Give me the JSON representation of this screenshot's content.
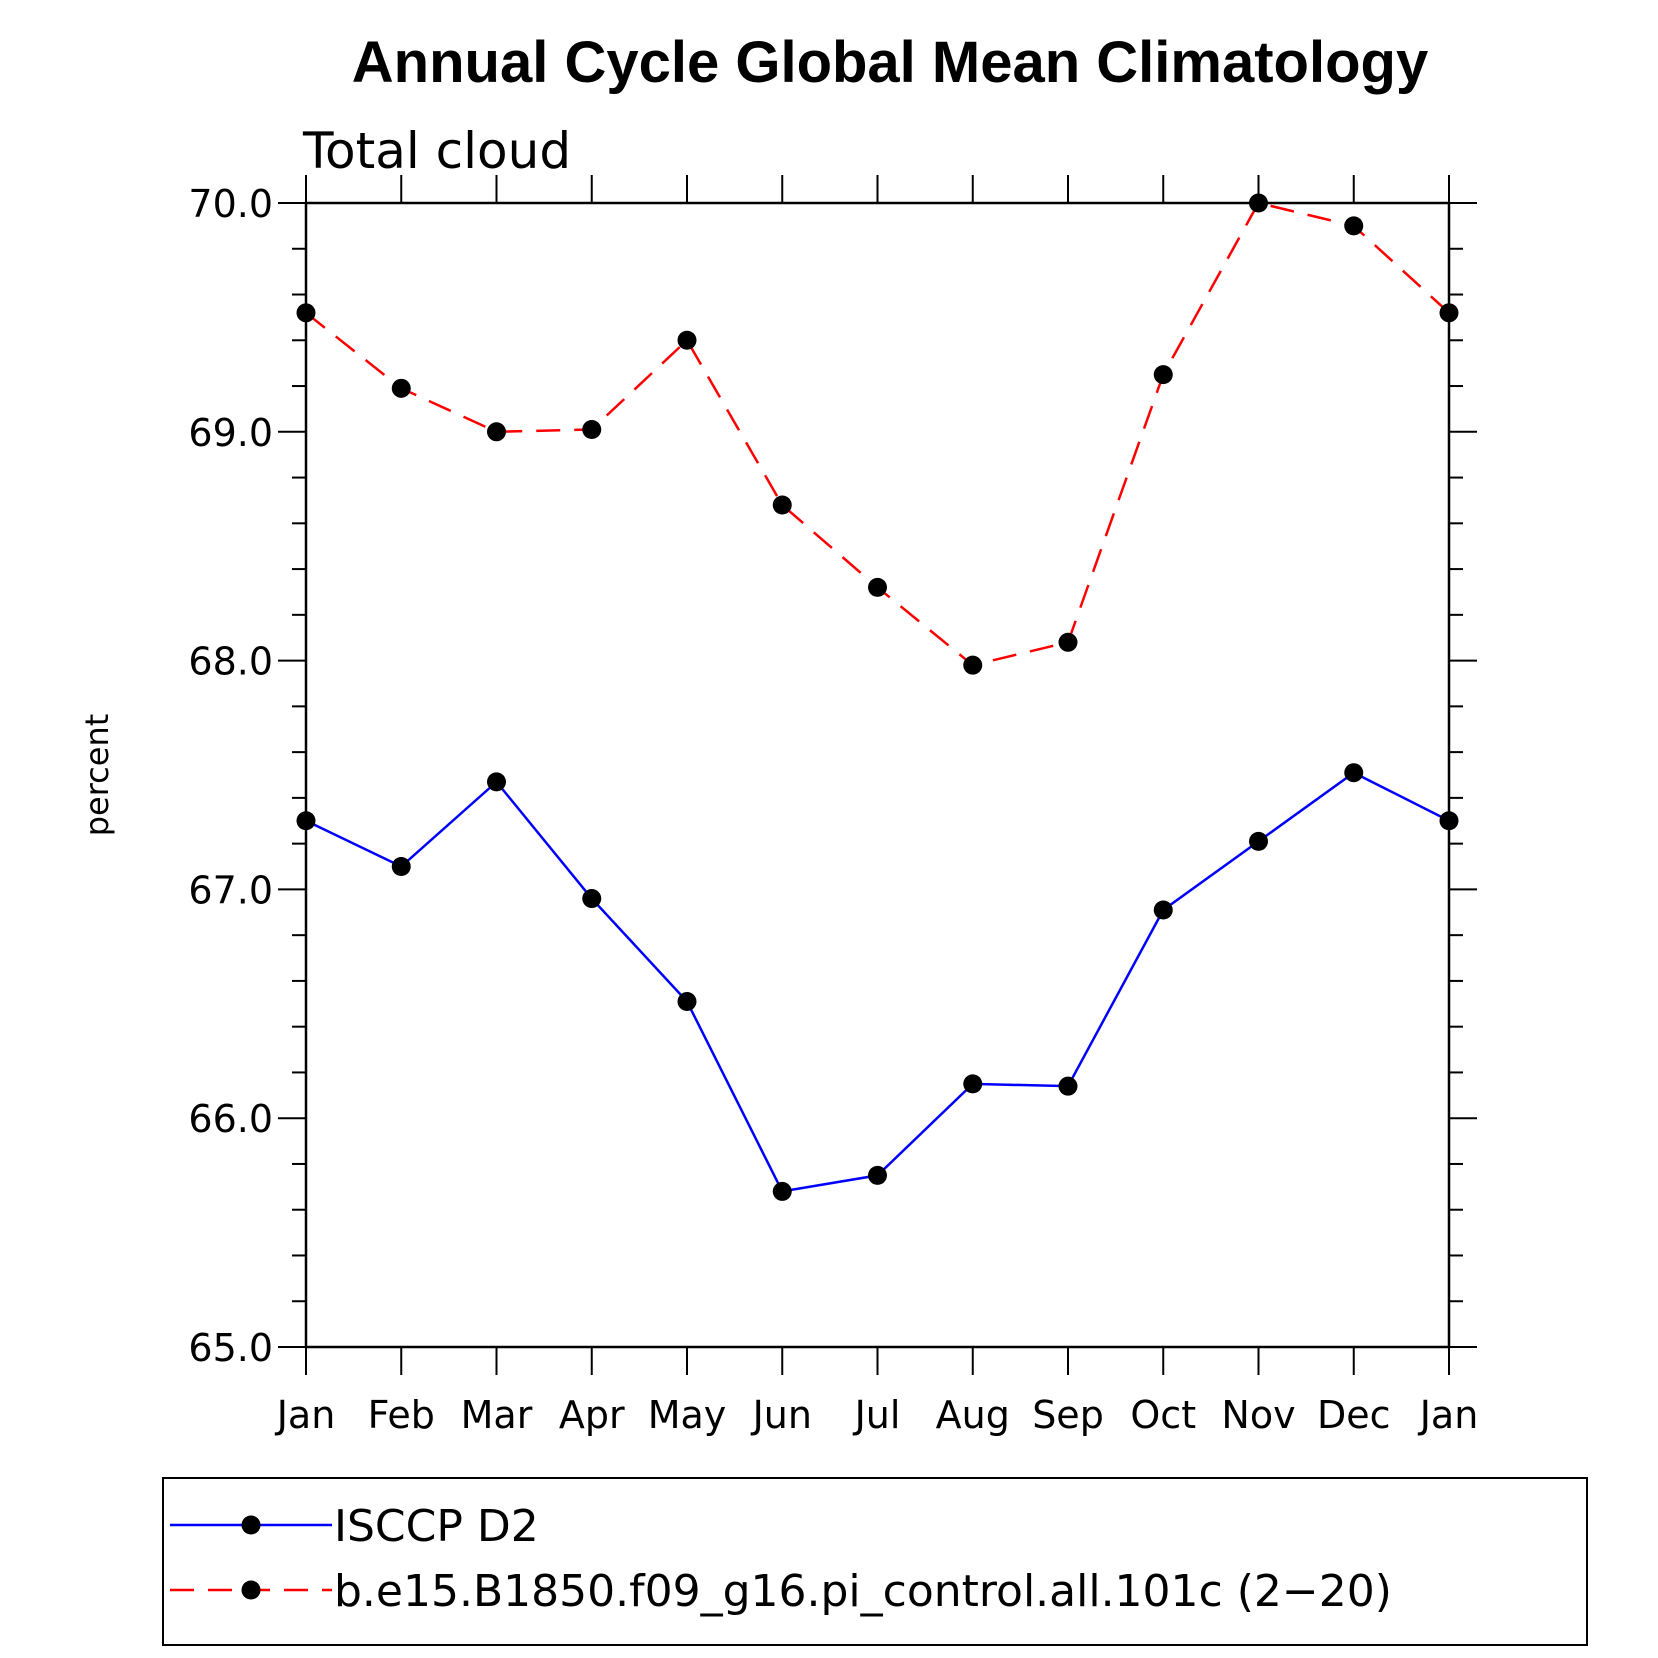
{
  "chart_data": {
    "type": "line",
    "title": "Annual Cycle Global Mean Climatology",
    "subtitle": "Total cloud",
    "ylabel": "percent",
    "xlabel": "",
    "ylim": [
      65.0,
      70.0
    ],
    "yticks": [
      "65.0",
      "66.0",
      "67.0",
      "68.0",
      "69.0",
      "70.0"
    ],
    "categories": [
      "Jan",
      "Feb",
      "Mar",
      "Apr",
      "May",
      "Jun",
      "Jul",
      "Aug",
      "Sep",
      "Oct",
      "Nov",
      "Dec",
      "Jan"
    ],
    "series": [
      {
        "name": "ISCCP D2",
        "color": "#0000ff",
        "line_style": "solid",
        "values": [
          67.3,
          67.1,
          67.47,
          66.96,
          66.51,
          65.68,
          65.75,
          66.15,
          66.14,
          66.91,
          67.21,
          67.51,
          67.3
        ]
      },
      {
        "name": "b.e15.B1850.f09_g16.pi_control.all.101c (2−20)",
        "color": "#ff0000",
        "line_style": "dashed",
        "values": [
          69.52,
          69.19,
          69.0,
          69.01,
          69.4,
          68.68,
          68.32,
          67.98,
          68.08,
          69.25,
          70.0,
          69.9,
          69.52
        ]
      }
    ],
    "legend_position": "bottom"
  }
}
